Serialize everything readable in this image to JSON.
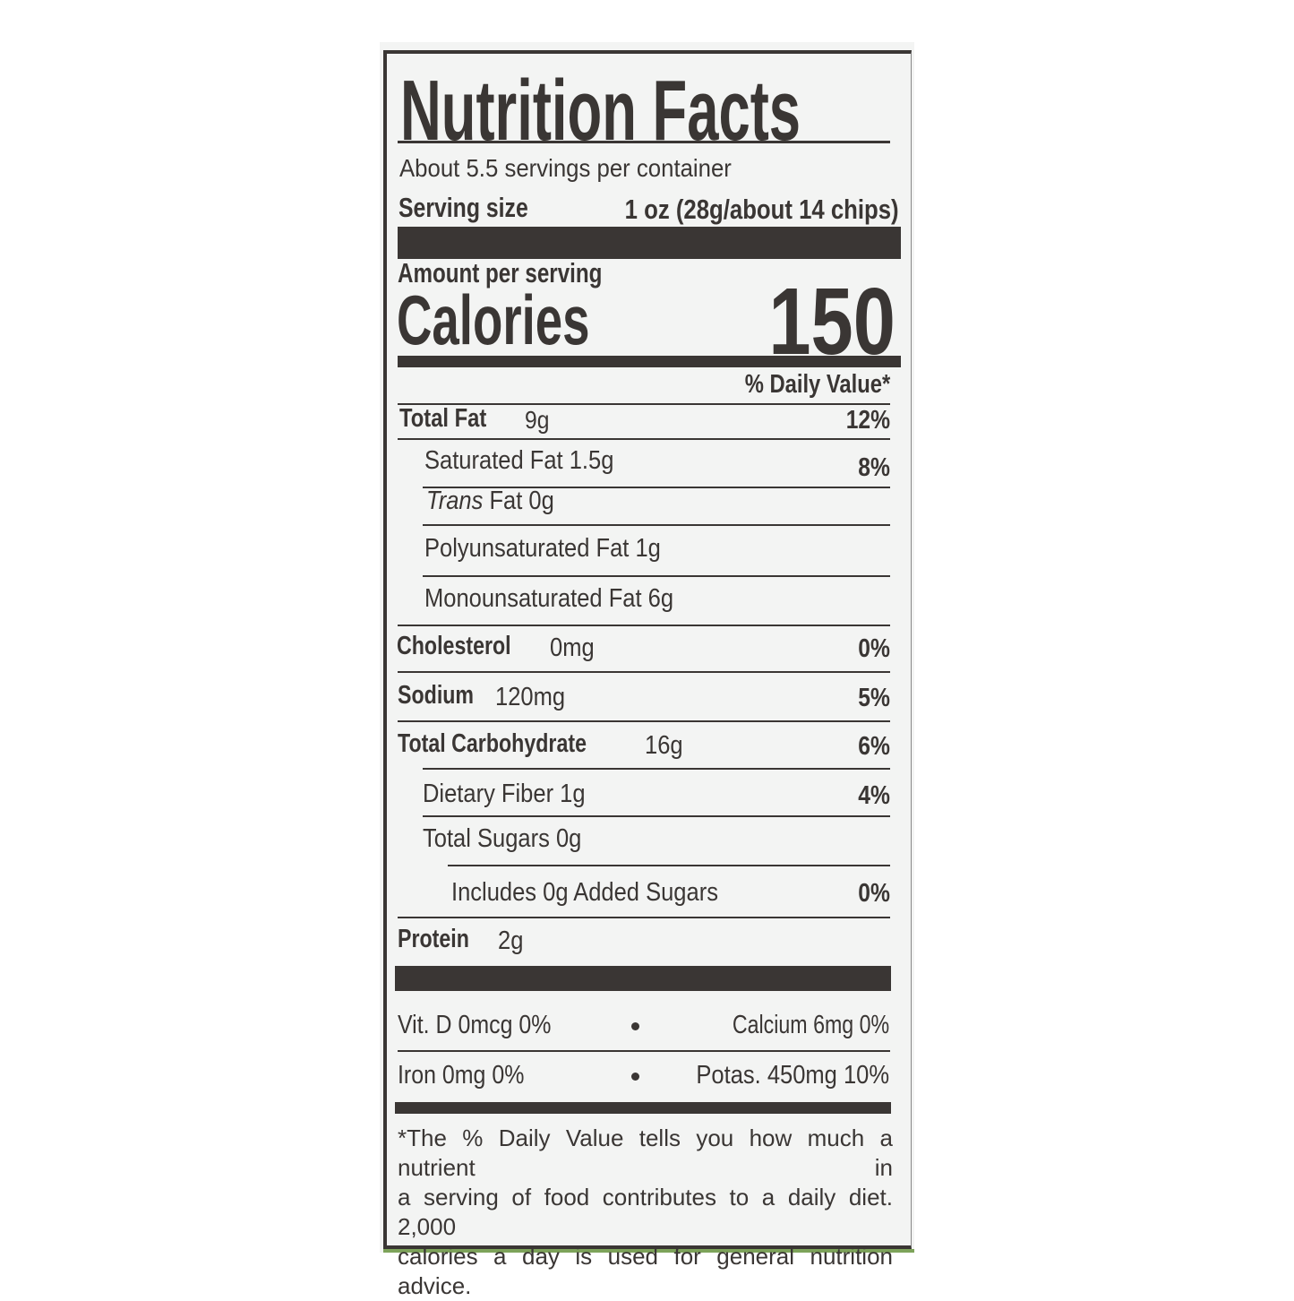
{
  "label": {
    "title": "Nutrition Facts",
    "servings_per_container": "About 5.5 servings per container",
    "serving_size_label": "Serving size",
    "serving_size_value": "1 oz (28g/about 14 chips)",
    "amount_per_serving": "Amount per serving",
    "calories_label": "Calories",
    "calories_value": "150",
    "daily_value_header": "% Daily Value*",
    "nutrients": [
      {
        "name": "Total Fat",
        "amount": "9g",
        "dv": "12%"
      },
      {
        "name": "Saturated Fat 1.5g",
        "dv": "8%"
      },
      {
        "name_italic": "Trans",
        "name": "Fat 0g"
      },
      {
        "name": "Polyunsaturated Fat 1g"
      },
      {
        "name": "Monounsaturated Fat 6g"
      },
      {
        "name": "Cholesterol",
        "amount": "0mg",
        "dv": "0%"
      },
      {
        "name": "Sodium",
        "amount": "120mg",
        "dv": "5%"
      },
      {
        "name": "Total Carbohydrate",
        "amount": "16g",
        "dv": "6%"
      },
      {
        "name": "Dietary Fiber 1g",
        "dv": "4%"
      },
      {
        "name": "Total Sugars 0g"
      },
      {
        "name": "Includes 0g Added Sugars",
        "dv": "0%"
      },
      {
        "name": "Protein",
        "amount": "2g"
      }
    ],
    "vitamins": [
      {
        "left": "Vit. D 0mcg 0%",
        "right": "Calcium 6mg 0%"
      },
      {
        "left": "Iron 0mg 0%",
        "right": "Potas. 450mg 10%"
      }
    ],
    "footnote": [
      "*The % Daily Value tells you how much a nutrient in",
      "a serving of food contributes to a daily diet. 2,000",
      "calories a day is used for general nutrition advice."
    ]
  }
}
